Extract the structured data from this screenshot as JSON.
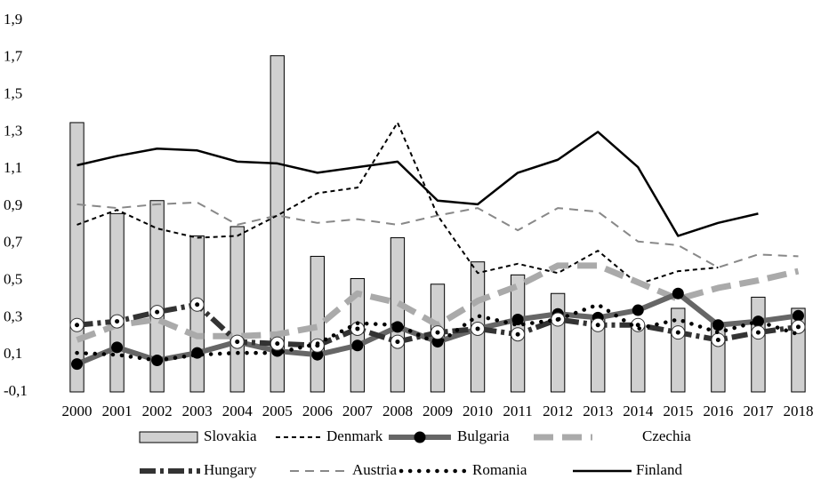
{
  "chart_data": {
    "type": "bar-line",
    "categories": [
      "2000",
      "2001",
      "2002",
      "2003",
      "2004",
      "2005",
      "2006",
      "2007",
      "2008",
      "2009",
      "2010",
      "2011",
      "2012",
      "2013",
      "2014",
      "2015",
      "2016",
      "2017",
      "2018"
    ],
    "ylim": [
      -0.1,
      1.9
    ],
    "yticks": [
      {
        "value": -0.1,
        "label": "-0,1"
      },
      {
        "value": 0.1,
        "label": "0,1"
      },
      {
        "value": 0.3,
        "label": "0,3"
      },
      {
        "value": 0.5,
        "label": "0,5"
      },
      {
        "value": 0.7,
        "label": "0,7"
      },
      {
        "value": 0.9,
        "label": "0,9"
      },
      {
        "value": 1.1,
        "label": "1,1"
      },
      {
        "value": 1.3,
        "label": "1,3"
      },
      {
        "value": 1.5,
        "label": "1,5"
      },
      {
        "value": 1.7,
        "label": "1,7"
      },
      {
        "value": 1.9,
        "label": "1,9"
      }
    ],
    "grid": false,
    "legend": "bottom",
    "series": [
      {
        "name": "Slovakia",
        "type": "bar",
        "color": "#d0d0d0",
        "values": [
          1.35,
          0.86,
          0.93,
          0.74,
          0.79,
          1.71,
          0.63,
          0.51,
          0.73,
          0.48,
          0.6,
          0.53,
          0.43,
          0.3,
          0.26,
          0.35,
          0.27,
          0.41,
          0.35
        ]
      },
      {
        "name": "Denmark",
        "type": "line",
        "color": "#000000",
        "values": [
          0.8,
          0.88,
          0.78,
          0.73,
          0.74,
          0.85,
          0.97,
          1.0,
          1.35,
          0.85,
          0.54,
          0.59,
          0.54,
          0.66,
          0.48,
          0.55,
          0.57,
          null,
          null
        ]
      },
      {
        "name": "Bulgaria",
        "type": "line",
        "color": "#666666",
        "values": [
          0.05,
          0.14,
          0.07,
          0.11,
          0.17,
          0.12,
          0.1,
          0.15,
          0.25,
          0.17,
          0.24,
          0.29,
          0.32,
          0.3,
          0.34,
          0.43,
          0.26,
          0.28,
          0.31
        ]
      },
      {
        "name": "Czechia",
        "type": "line",
        "color": "#aaaaaa",
        "values": [
          0.18,
          0.26,
          0.29,
          0.2,
          0.2,
          0.21,
          0.25,
          0.43,
          0.38,
          0.26,
          0.39,
          0.47,
          0.58,
          0.58,
          0.49,
          0.4,
          0.46,
          0.5,
          0.55
        ]
      },
      {
        "name": "Hungary",
        "type": "line",
        "color": "#333333",
        "values": [
          0.26,
          0.28,
          0.33,
          0.37,
          0.17,
          0.16,
          0.15,
          0.24,
          0.17,
          0.22,
          0.24,
          0.21,
          0.29,
          0.26,
          0.26,
          0.22,
          0.18,
          0.22,
          0.25
        ]
      },
      {
        "name": "Austria",
        "type": "line",
        "color": "#888888",
        "values": [
          0.91,
          0.89,
          0.91,
          0.92,
          0.8,
          0.85,
          0.81,
          0.83,
          0.8,
          0.85,
          0.89,
          0.77,
          0.89,
          0.87,
          0.71,
          0.69,
          0.57,
          0.64,
          0.63
        ]
      },
      {
        "name": "Romania",
        "type": "line",
        "color": "#000000",
        "values": [
          0.11,
          0.1,
          0.07,
          0.1,
          0.11,
          0.11,
          0.16,
          0.27,
          0.26,
          0.16,
          0.31,
          0.26,
          0.29,
          0.37,
          0.24,
          0.29,
          0.22,
          0.28,
          0.21
        ]
      },
      {
        "name": "Finland",
        "type": "line",
        "color": "#000000",
        "values": [
          1.12,
          1.17,
          1.21,
          1.2,
          1.14,
          1.13,
          1.08,
          1.11,
          1.14,
          0.93,
          0.91,
          1.08,
          1.15,
          1.3,
          1.11,
          0.74,
          0.81,
          0.86,
          null
        ]
      }
    ]
  }
}
